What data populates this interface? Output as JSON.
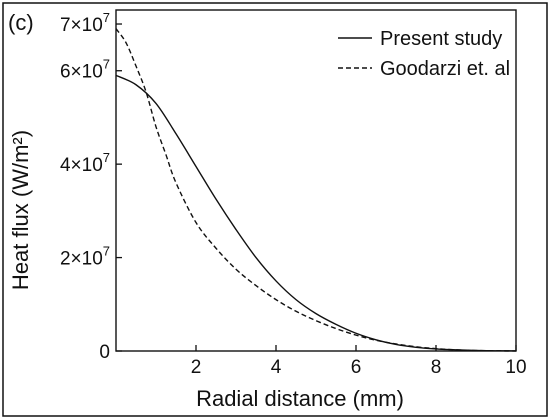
{
  "chart_data": {
    "type": "line",
    "panel_label": "(c)",
    "xlabel": "Radial distance (mm)",
    "ylabel": "Heat flux (W/m²)",
    "xlim": [
      0,
      10
    ],
    "ylim": [
      0,
      73000000
    ],
    "x_ticks": [
      {
        "value": 2,
        "label": "2"
      },
      {
        "value": 4,
        "label": "4"
      },
      {
        "value": 6,
        "label": "6"
      },
      {
        "value": 8,
        "label": "8"
      },
      {
        "value": 10,
        "label": "10"
      }
    ],
    "y_ticks": [
      {
        "value": 0,
        "label": "0"
      },
      {
        "value": 20000000,
        "mant": "2",
        "base": "×10",
        "exp": "7"
      },
      {
        "value": 40000000,
        "mant": "4",
        "base": "×10",
        "exp": "7"
      },
      {
        "value": 60000000,
        "mant": "6",
        "base": "×10",
        "exp": "7"
      },
      {
        "value": 70000000,
        "mant": "7",
        "base": "×10",
        "exp": "7"
      }
    ],
    "legend_position": "top-right",
    "grid": false,
    "series": [
      {
        "name": "Present study",
        "style": "solid",
        "x": [
          0,
          0.5,
          1,
          1.5,
          2,
          2.5,
          3,
          3.5,
          4,
          4.5,
          5,
          5.5,
          6,
          6.5,
          7,
          7.5,
          8,
          8.5,
          9,
          9.5,
          10
        ],
        "y": [
          59000000,
          57000000,
          53000000,
          46500000,
          39500000,
          32500000,
          26000000,
          20000000,
          15000000,
          11000000,
          8000000,
          5700000,
          3800000,
          2400000,
          1400000,
          800000,
          450000,
          250000,
          120000,
          50000,
          20000
        ]
      },
      {
        "name": "Goodarzi et. al",
        "style": "dashed",
        "x": [
          0,
          0.25,
          0.5,
          0.75,
          1,
          1.25,
          1.5,
          2,
          2.5,
          3,
          3.5,
          4,
          4.5,
          5,
          5.5,
          6,
          6.5,
          7,
          7.5,
          8,
          8.5,
          9,
          9.5,
          10
        ],
        "y": [
          69000000,
          66000000,
          61000000,
          55500000,
          48000000,
          42000000,
          36000000,
          27500000,
          22000000,
          17500000,
          14000000,
          11000000,
          8500000,
          6500000,
          4800000,
          3400000,
          2300000,
          1500000,
          900000,
          500000,
          250000,
          100000,
          40000,
          10000
        ]
      }
    ]
  }
}
